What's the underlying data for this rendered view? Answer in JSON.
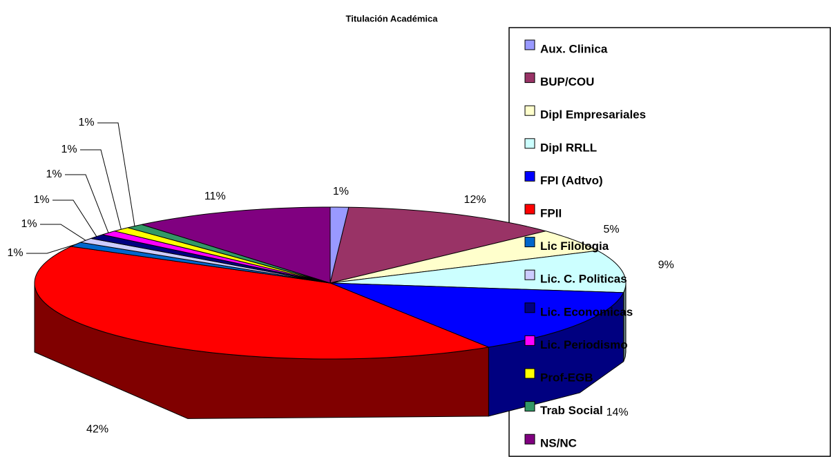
{
  "chart_data": {
    "type": "pie3d",
    "title": "Titulación Académica",
    "categories": [
      "Aux. Clinica",
      "BUP/COU",
      "Dipl Empresariales",
      "Dipl RRLL",
      "FPI (Adtvo)",
      "FPII",
      "Lic Filologia",
      "Lic. C. Politicas",
      "Lic. Economicas",
      "Lic. Periodismo",
      "Prof-EGB",
      "Trab Social",
      "NS/NC"
    ],
    "values": [
      1,
      12,
      5,
      9,
      14,
      42,
      1,
      1,
      1,
      1,
      1,
      1,
      11
    ],
    "value_labels": [
      "1%",
      "12%",
      "5%",
      "9%",
      "14%",
      "42%",
      "1%",
      "1%",
      "1%",
      "1%",
      "1%",
      "1%",
      "11%"
    ],
    "colors": [
      "#9999ff",
      "#993366",
      "#ffffcc",
      "#ccffff",
      "#0000ff",
      "#ff0000",
      "#0066cc",
      "#ccccff",
      "#000080",
      "#ff00ff",
      "#ffff00",
      "#339966",
      "#800080"
    ],
    "legend": "right"
  }
}
